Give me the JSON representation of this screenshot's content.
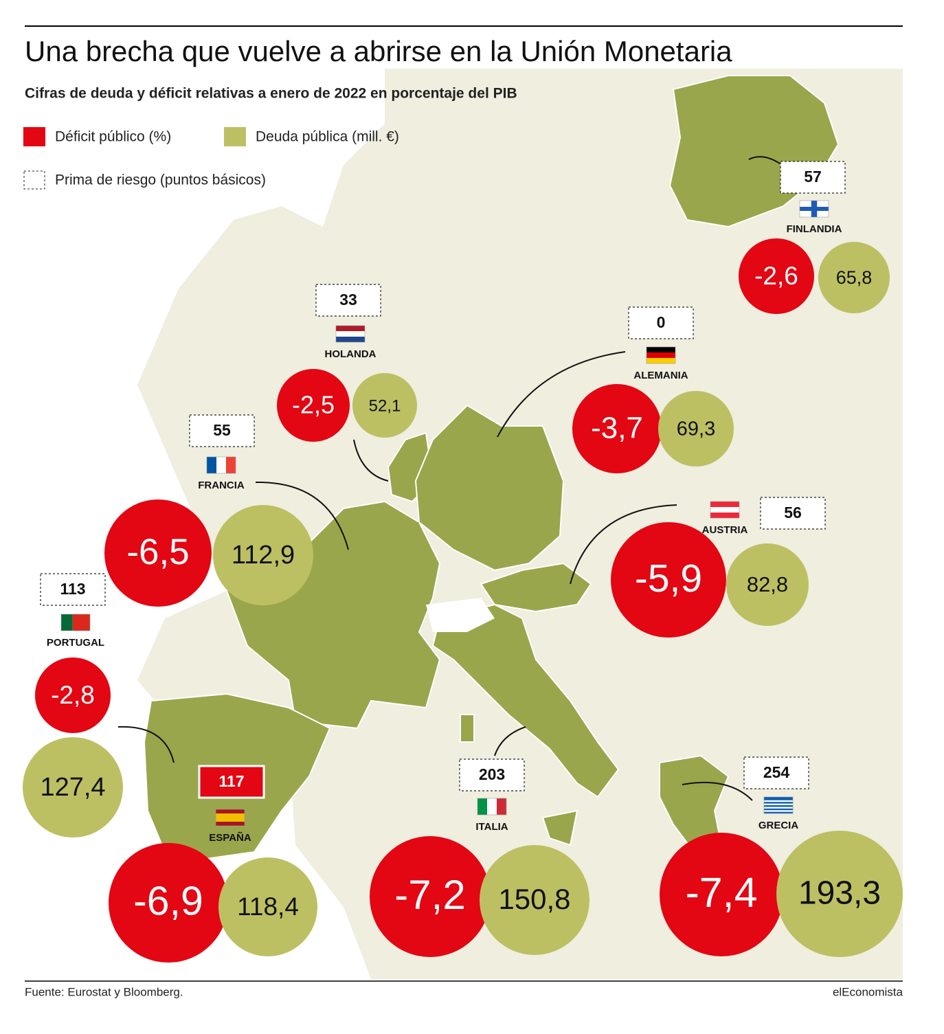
{
  "header": {
    "title": "Una brecha que vuelve a abrirse en la Unión Monetaria",
    "subtitle": "Cifras de deuda y déficit relativas a enero de 2022 en porcentaje del PIB"
  },
  "legend": {
    "deficit": "Déficit público (%)",
    "debt": "Deuda pública (mill. €)",
    "premium": "Prima de riesgo (puntos básicos)"
  },
  "countries": [
    {
      "name": "FINLANDIA",
      "premium": "57",
      "deficit": "-2,6",
      "debt": "65,8"
    },
    {
      "name": "HOLANDA",
      "premium": "33",
      "deficit": "-2,5",
      "debt": "52,1"
    },
    {
      "name": "ALEMANIA",
      "premium": "0",
      "deficit": "-3,7",
      "debt": "69,3"
    },
    {
      "name": "FRANCIA",
      "premium": "55",
      "deficit": "-6,5",
      "debt": "112,9"
    },
    {
      "name": "AUSTRIA",
      "premium": "56",
      "deficit": "-5,9",
      "debt": "82,8"
    },
    {
      "name": "PORTUGAL",
      "premium": "113",
      "deficit": "-2,8",
      "debt": "127,4"
    },
    {
      "name": "ESPAÑA",
      "premium": "117",
      "deficit": "-6,9",
      "debt": "118,4"
    },
    {
      "name": "ITALIA",
      "premium": "203",
      "deficit": "-7,2",
      "debt": "150,8"
    },
    {
      "name": "GRECIA",
      "premium": "254",
      "deficit": "-7,4",
      "debt": "193,3"
    }
  ],
  "footer": {
    "source": "Fuente: Eurostat y Bloomberg.",
    "brand": "elEconomista"
  }
}
